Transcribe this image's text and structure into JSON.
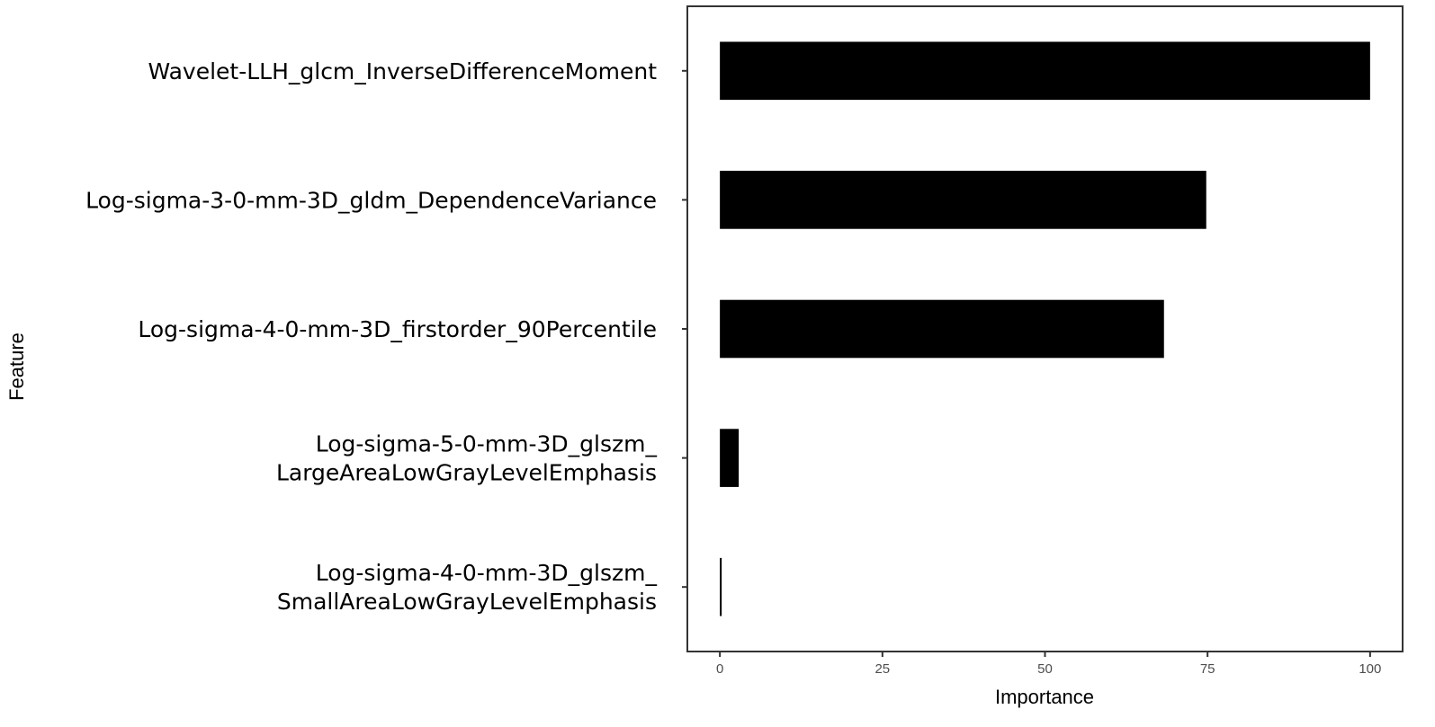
{
  "chart_data": {
    "type": "bar",
    "orientation": "horizontal",
    "xlabel": "Importance",
    "ylabel": "Feature",
    "xlim": [
      -5,
      105
    ],
    "xticks": [
      "0",
      "25",
      "50",
      "75",
      "100"
    ],
    "grid": false,
    "legend": "none",
    "bar_color": "#000000",
    "categories": [
      [
        "Wavelet-LLH_glcm_InverseDifferenceMoment"
      ],
      [
        "Log-sigma-3-0-mm-3D_gldm_DependenceVariance"
      ],
      [
        "Log-sigma-4-0-mm-3D_firstorder_90Percentile"
      ],
      [
        "Log-sigma-5-0-mm-3D_glszm_",
        "LargeAreaLowGrayLevelEmphasis"
      ],
      [
        "Log-sigma-4-0-mm-3D_glszm_",
        "SmallAreaLowGrayLevelEmphasis"
      ]
    ],
    "values": [
      100,
      74.8,
      68.3,
      2.9,
      0
    ]
  }
}
